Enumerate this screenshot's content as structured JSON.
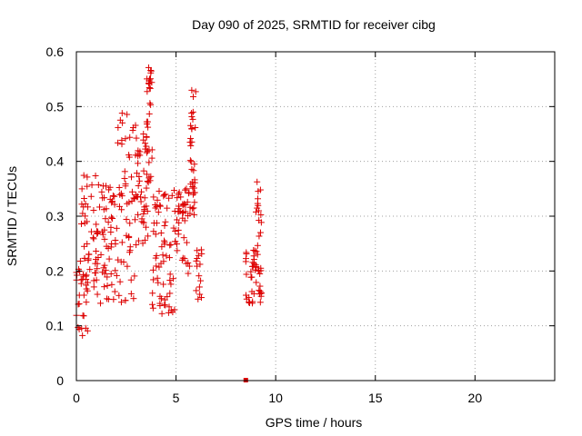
{
  "chart_data": {
    "type": "scatter",
    "title": "Day 090 of 2025, SRMTID for receiver cibg",
    "xlabel": "GPS time / hours",
    "ylabel": "SRMTID / TECUs",
    "xlim": [
      0,
      24
    ],
    "ylim": [
      0,
      0.6
    ],
    "xticks": [
      0,
      5,
      10,
      15,
      20
    ],
    "yticks": [
      0,
      0.1,
      0.2,
      0.3,
      0.4,
      0.5,
      0.6
    ],
    "xtick_labels": [
      "0",
      "5",
      "10",
      "15",
      "20"
    ],
    "ytick_labels": [
      "0",
      "0.1",
      "0.2",
      "0.3",
      "0.4",
      "0.5",
      "0.6"
    ],
    "grid": true,
    "marker": "+",
    "color": "#dd0000",
    "clusters": [
      {
        "x_range": [
          0.0,
          0.6
        ],
        "y_low": 0.08,
        "y_high": 0.22,
        "n": 30
      },
      {
        "x_range": [
          0.2,
          1.0
        ],
        "y_low": 0.16,
        "y_high": 0.38,
        "n": 40
      },
      {
        "x_range": [
          1.0,
          2.0
        ],
        "y_low": 0.14,
        "y_high": 0.36,
        "n": 60
      },
      {
        "x_range": [
          2.0,
          3.0
        ],
        "y_low": 0.14,
        "y_high": 0.49,
        "n": 60
      },
      {
        "x_range": [
          3.0,
          3.6
        ],
        "y_low": 0.25,
        "y_high": 0.45,
        "n": 40
      },
      {
        "x_range": [
          3.5,
          3.8
        ],
        "y_low": 0.3,
        "y_high": 0.58,
        "n": 35
      },
      {
        "x_range": [
          3.8,
          5.0
        ],
        "y_low": 0.12,
        "y_high": 0.35,
        "n": 70
      },
      {
        "x_range": [
          5.0,
          5.7
        ],
        "y_low": 0.19,
        "y_high": 0.35,
        "n": 40
      },
      {
        "x_range": [
          5.7,
          6.0
        ],
        "y_low": 0.3,
        "y_high": 0.53,
        "n": 35
      },
      {
        "x_range": [
          6.0,
          6.3
        ],
        "y_low": 0.14,
        "y_high": 0.24,
        "n": 15
      },
      {
        "x_range": [
          8.5,
          9.3
        ],
        "y_low": 0.14,
        "y_high": 0.24,
        "n": 40
      },
      {
        "x_range": [
          9.0,
          9.3
        ],
        "y_low": 0.2,
        "y_high": 0.37,
        "n": 20
      }
    ],
    "extra_points": [
      {
        "x": 8.5,
        "y": 0.0
      }
    ]
  }
}
